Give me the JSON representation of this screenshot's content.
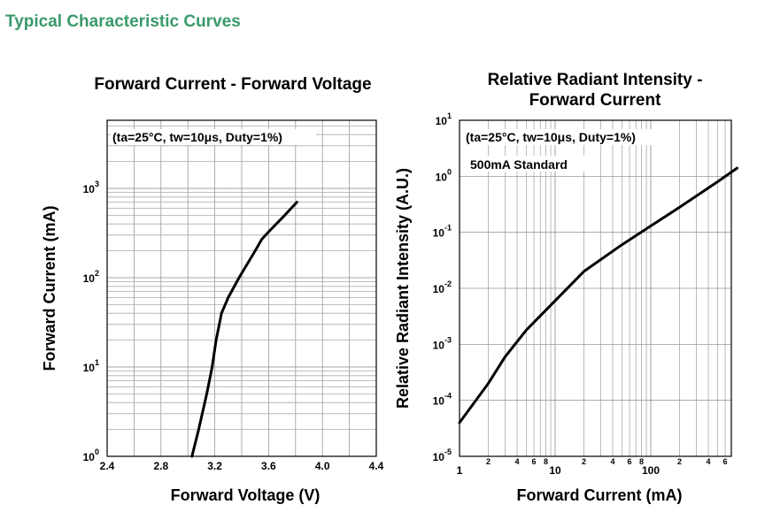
{
  "page": {
    "title": "Typical Characteristic Curves",
    "title_color": "#3a9a6a"
  },
  "chart_data": [
    {
      "type": "line",
      "title": "Forward Current - Forward Voltage",
      "xlabel": "Forward Voltage (V)",
      "ylabel": "Forward Current (mA)",
      "xscale": "linear",
      "yscale": "log",
      "xlim": [
        2.4,
        4.4
      ],
      "ylim": [
        1,
        5000
      ],
      "x_ticks": [
        "2.4",
        "2.8",
        "3.2",
        "3.6",
        "4.0",
        "4.4"
      ],
      "y_ticks": [
        {
          "base": "10",
          "exp": "0"
        },
        {
          "base": "10",
          "exp": "1"
        },
        {
          "base": "10",
          "exp": "2"
        },
        {
          "base": "10",
          "exp": "3"
        }
      ],
      "grid": true,
      "annotation": "(ta=25°C, tw=10μs, Duty=1%)",
      "series": [
        {
          "x": [
            3.03,
            3.08,
            3.14,
            3.18,
            3.21,
            3.25,
            3.3,
            3.38,
            3.5,
            3.55,
            3.62,
            3.72,
            3.81
          ],
          "y": [
            1,
            2,
            5,
            10,
            20,
            40,
            60,
            100,
            200,
            270,
            350,
            500,
            700
          ]
        }
      ]
    },
    {
      "type": "line",
      "title": "Relative Radiant Intensity - Forward Current",
      "title_lines": [
        "Relative Radiant Intensity -",
        "Forward Current"
      ],
      "xlabel": "Forward Current (mA)",
      "ylabel": "Relative Radiant Intensity (A.U.)",
      "xscale": "log",
      "yscale": "log",
      "xlim": [
        1,
        800
      ],
      "ylim": [
        1e-05,
        10
      ],
      "x_ticks": [
        "1",
        "10",
        "100"
      ],
      "x_minor_labels": [
        "2",
        "4",
        "6",
        "8",
        "2",
        "4",
        "6",
        "8",
        "2",
        "4",
        "6"
      ],
      "y_ticks": [
        {
          "base": "10",
          "exp": "-5"
        },
        {
          "base": "10",
          "exp": "-4"
        },
        {
          "base": "10",
          "exp": "-3"
        },
        {
          "base": "10",
          "exp": "-2"
        },
        {
          "base": "10",
          "exp": "-1"
        },
        {
          "base": "10",
          "exp": "0"
        },
        {
          "base": "10",
          "exp": "1"
        }
      ],
      "grid": true,
      "annotation": "(ta=25°C, tw=10μs, Duty=1%)",
      "annotation2": "500mA Standard",
      "series": [
        {
          "x": [
            1,
            2,
            3,
            5,
            10,
            20,
            50,
            100,
            200,
            500,
            800
          ],
          "y": [
            4e-05,
            0.0002,
            0.0006,
            0.0018,
            0.006,
            0.02,
            0.06,
            0.13,
            0.28,
            0.8,
            1.4
          ]
        }
      ]
    }
  ]
}
